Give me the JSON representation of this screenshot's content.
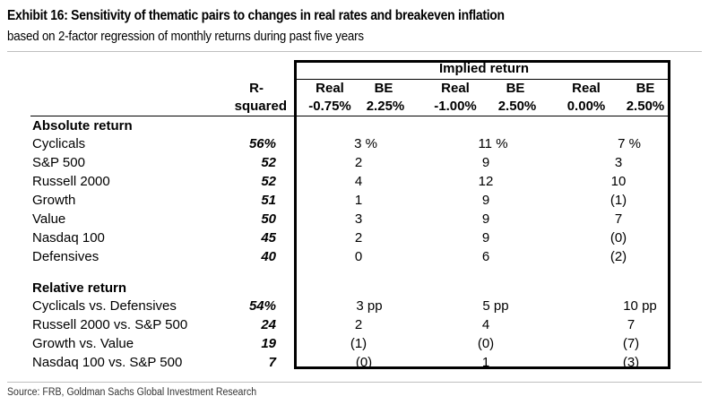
{
  "title": "Exhibit 16: Sensitivity of thematic pairs to changes in real rates and breakeven inflation",
  "subtitle": "based on 2-factor regression of monthly returns during past five years",
  "source": "Source: FRB, Goldman Sachs Global Investment Research",
  "table": {
    "implied_header": "Implied return",
    "rsq_header_1": "R-",
    "rsq_header_2": "squared",
    "scenarios": [
      {
        "real_label": "Real",
        "be_label": "BE",
        "real": "-0.75%",
        "be": "2.25%"
      },
      {
        "real_label": "Real",
        "be_label": "BE",
        "real": "-1.00%",
        "be": "2.50%"
      },
      {
        "real_label": "Real",
        "be_label": "BE",
        "real": "0.00%",
        "be": "2.50%"
      }
    ],
    "sections": [
      {
        "title": "Absolute return",
        "rows": [
          {
            "name": "Cyclicals",
            "rsq": "56%",
            "v": [
              "3 %",
              "11 %",
              "7 %"
            ]
          },
          {
            "name": "S&P 500",
            "rsq": "52",
            "v": [
              "2",
              "9",
              "3"
            ]
          },
          {
            "name": "Russell 2000",
            "rsq": "52",
            "v": [
              "4",
              "12",
              "10"
            ]
          },
          {
            "name": "Growth",
            "rsq": "51",
            "v": [
              "1",
              "9",
              "(1)"
            ]
          },
          {
            "name": "Value",
            "rsq": "50",
            "v": [
              "3",
              "9",
              "7"
            ]
          },
          {
            "name": "Nasdaq 100",
            "rsq": "45",
            "v": [
              "2",
              "9",
              "(0)"
            ]
          },
          {
            "name": "Defensives",
            "rsq": "40",
            "v": [
              "0",
              "6",
              "(2)"
            ]
          }
        ]
      },
      {
        "title": "Relative return",
        "rows": [
          {
            "name": "Cyclicals vs. Defensives",
            "rsq": "54%",
            "v": [
              "3 pp",
              "5 pp",
              "10 pp"
            ]
          },
          {
            "name": "Russell 2000 vs. S&P 500",
            "rsq": "24",
            "v": [
              "2",
              "4",
              "7"
            ]
          },
          {
            "name": "Growth vs. Value",
            "rsq": "19",
            "v": [
              "(1)",
              "(0)",
              "(7)"
            ]
          },
          {
            "name": "Nasdaq 100 vs. S&P 500",
            "rsq": "7",
            "v": [
              "(0)",
              "1",
              "(3)"
            ]
          }
        ]
      }
    ]
  }
}
